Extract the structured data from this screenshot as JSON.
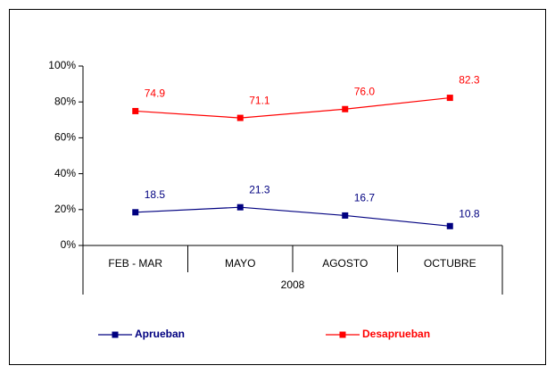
{
  "chart_data": {
    "type": "line",
    "categories": [
      "FEB - MAR",
      "MAYO",
      "AGOSTO",
      "OCTUBRE"
    ],
    "group_label": "2008",
    "series": [
      {
        "name": "Aprueban",
        "color": "#000080",
        "values": [
          18.5,
          21.3,
          16.7,
          10.8
        ],
        "value_labels": [
          "18.5",
          "21.3",
          "16.7",
          "10.8"
        ]
      },
      {
        "name": "Desaprueban",
        "color": "#ff0000",
        "values": [
          74.9,
          71.1,
          76.0,
          82.3
        ],
        "value_labels": [
          "74.9",
          "71.1",
          "76.0",
          "82.3"
        ]
      }
    ],
    "ylim": [
      0,
      100
    ],
    "yticks": [
      {
        "value": 0,
        "label": "0%"
      },
      {
        "value": 20,
        "label": "20%"
      },
      {
        "value": 40,
        "label": "40%"
      },
      {
        "value": 60,
        "label": "60%"
      },
      {
        "value": 80,
        "label": "80%"
      },
      {
        "value": 100,
        "label": "100%"
      }
    ],
    "legend": "bottom"
  }
}
